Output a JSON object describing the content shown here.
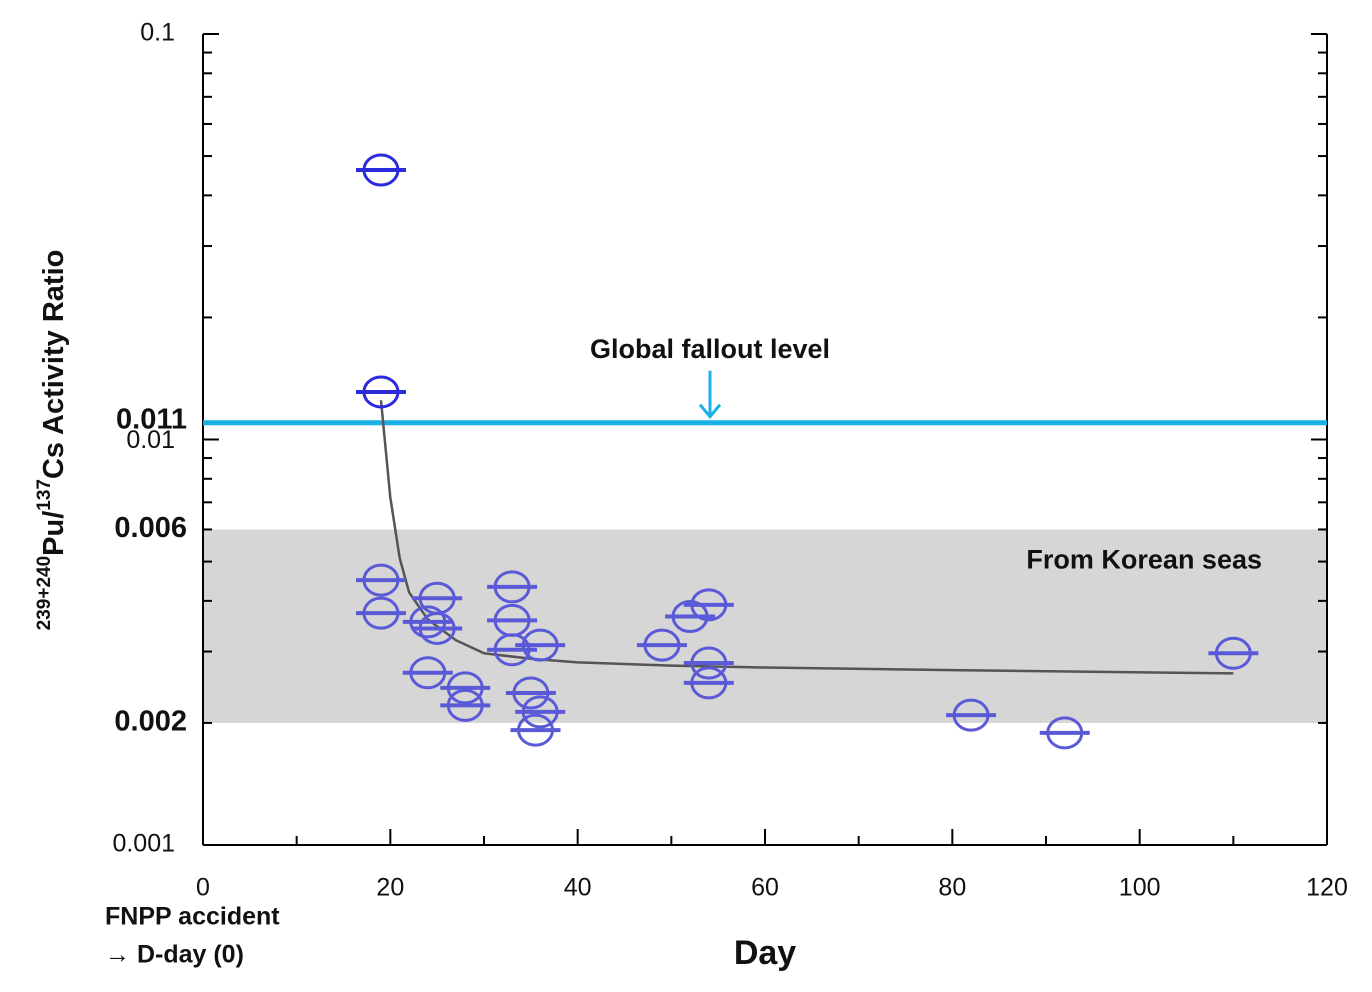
{
  "chart_data": {
    "type": "scatter",
    "y_label": [
      "239+240",
      "Pu/",
      "137",
      "Cs Activity Ratio"
    ],
    "x_label": "Day",
    "x_note": [
      "FNPP accident",
      "→ D-day (0)"
    ],
    "log_y": true,
    "xlim": [
      0,
      120
    ],
    "xticks": [
      0,
      20,
      40,
      60,
      80,
      100,
      120
    ],
    "x_minor_ticks": [
      10,
      30,
      50,
      70,
      90,
      110
    ],
    "ylim": [
      0.001,
      0.1
    ],
    "yticks": [
      0.001,
      0.01,
      0.1
    ],
    "y_minor_ticks": [
      0.002,
      0.003,
      0.004,
      0.005,
      0.006,
      0.007,
      0.008,
      0.009,
      0.02,
      0.03,
      0.04,
      0.05,
      0.06,
      0.07,
      0.08,
      0.09
    ],
    "highlighted_yticks": [
      0.011,
      0.006,
      0.002
    ],
    "reference_line": {
      "value": 0.011,
      "label": "Global fallout level",
      "color": "#1ab0e6"
    },
    "band": {
      "range": [
        0.002,
        0.006
      ],
      "label": "From Korean seas",
      "color": "#d6d6d6"
    },
    "series": [
      {
        "color": "#2b2bdc",
        "x": [
          19,
          19
        ],
        "values": [
          0.0462,
          0.0131
        ]
      },
      {
        "color": "#5a5ad8",
        "x": [
          19,
          19,
          25,
          24,
          25,
          24,
          28,
          28,
          33,
          33,
          33,
          36,
          35,
          36,
          35.5,
          49,
          52,
          54,
          54,
          54,
          82,
          92,
          110
        ],
        "values": [
          0.0045,
          0.00373,
          0.00406,
          0.00355,
          0.00342,
          0.00266,
          0.00244,
          0.00221,
          0.00433,
          0.00358,
          0.00303,
          0.00311,
          0.00237,
          0.00213,
          0.00192,
          0.00311,
          0.00366,
          0.00391,
          0.00281,
          0.00251,
          0.00209,
          0.00189,
          0.00297
        ]
      }
    ],
    "fit": {
      "color": "#555555",
      "x": [
        19,
        19.5,
        20,
        21,
        22,
        24,
        27,
        30,
        35,
        40,
        50,
        60,
        80,
        110
      ],
      "values": [
        0.0125,
        0.0095,
        0.0072,
        0.0051,
        0.0042,
        0.0036,
        0.0032,
        0.00297,
        0.00288,
        0.00282,
        0.00277,
        0.00274,
        0.0027,
        0.00265
      ]
    }
  }
}
